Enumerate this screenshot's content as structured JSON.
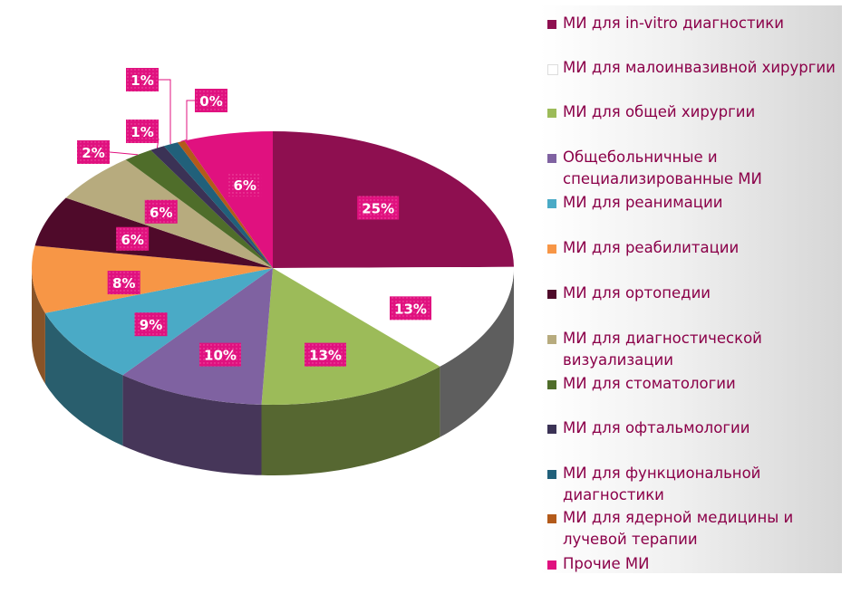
{
  "chart_data": {
    "type": "pie",
    "title": "",
    "categories": [
      "МИ для in-vitro диагностики",
      "МИ для малоинвазивной хирургии",
      "МИ для общей хирургии",
      "Общебольничные и специализированные МИ",
      "МИ для реанимации",
      "МИ для реабилитации",
      "МИ для ортопедии",
      "МИ для диагностической визуализации",
      "МИ для стоматологии",
      "МИ для офтальмологии",
      "МИ для функциональной диагностики",
      "МИ для ядерной медицины и лучевой терапии",
      "Прочие МИ"
    ],
    "values": [
      25,
      13,
      13,
      10,
      9,
      8,
      6,
      6,
      2,
      1,
      1,
      0.5,
      6
    ],
    "data_labels": [
      "25%",
      "13%",
      "13%",
      "10%",
      "9%",
      "8%",
      "6%",
      "6%",
      "2%",
      "1%",
      "1%",
      "0%",
      "6%"
    ],
    "colors": [
      "#8e0f50",
      "#ffffff",
      "#9cbb59",
      "#7f62a1",
      "#4aaac6",
      "#f79646",
      "#4f0a2a",
      "#b7ab7e",
      "#4f6d2a",
      "#3b3255",
      "#21607a",
      "#b35a1a",
      "#e0117f"
    ],
    "legend_position": "right",
    "label_color": "#e0117f"
  }
}
